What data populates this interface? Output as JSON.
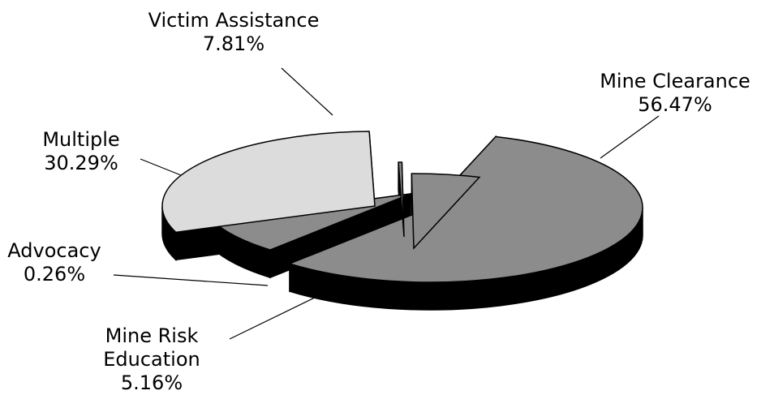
{
  "chart_data": {
    "type": "pie",
    "style": "3d-exploded",
    "categories": [
      "Mine Clearance",
      "Victim Assistance",
      "Multiple",
      "Advocacy",
      "Mine Risk Education"
    ],
    "values": [
      56.47,
      7.81,
      30.29,
      0.26,
      5.16
    ],
    "value_labels": [
      "56.47%",
      "7.81%",
      "30.29%",
      "0.26%",
      "5.16%"
    ],
    "label_lines": [
      [
        "Mine Clearance",
        "56.47%"
      ],
      [
        "Victim Assistance",
        "7.81%"
      ],
      [
        "Multiple",
        "30.29%"
      ],
      [
        "Advocacy",
        "0.26%"
      ],
      [
        "Mine Risk",
        "Education",
        "5.16%"
      ]
    ],
    "colors": [
      "#8c8c8c",
      "#8c8c8c",
      "#dcdcdc",
      "#8c8c8c",
      "#8c8c8c"
    ],
    "side_color": "#000000",
    "legend": "none"
  }
}
